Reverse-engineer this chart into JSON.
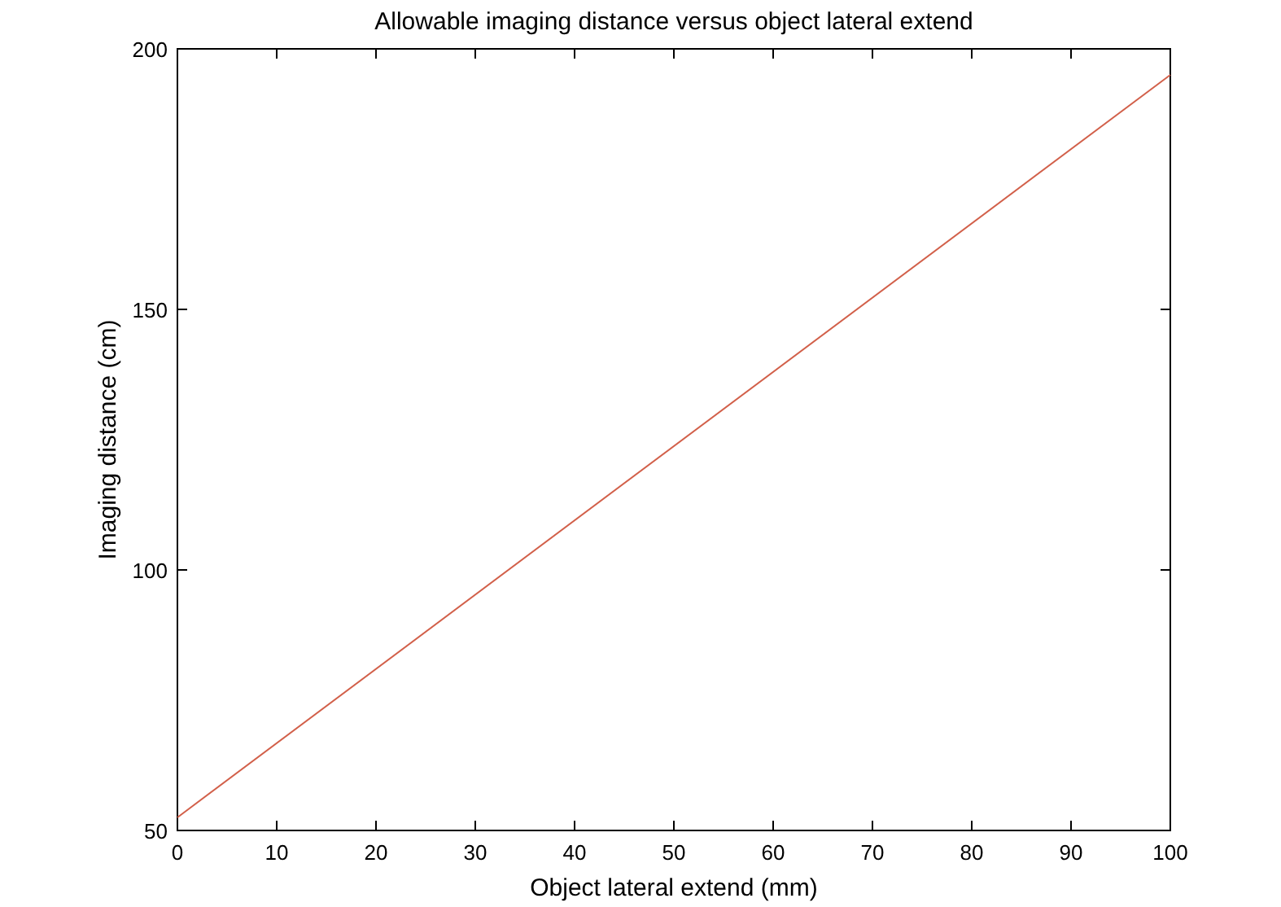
{
  "chart_data": {
    "type": "line",
    "title": "Allowable imaging distance versus object lateral extend",
    "xlabel": "Object lateral extend (mm)",
    "ylabel": "Imaging distance (cm)",
    "x": [
      0,
      100
    ],
    "series": [
      {
        "color": "#d2604a",
        "values": [
          52.5,
          195
        ]
      }
    ],
    "xlim": [
      0,
      100
    ],
    "xticks": [
      0,
      10,
      20,
      30,
      40,
      50,
      60,
      70,
      80,
      90,
      100
    ],
    "ylim": [
      50,
      200
    ],
    "yticks": [
      50,
      100,
      150,
      200
    ],
    "grid": false
  }
}
